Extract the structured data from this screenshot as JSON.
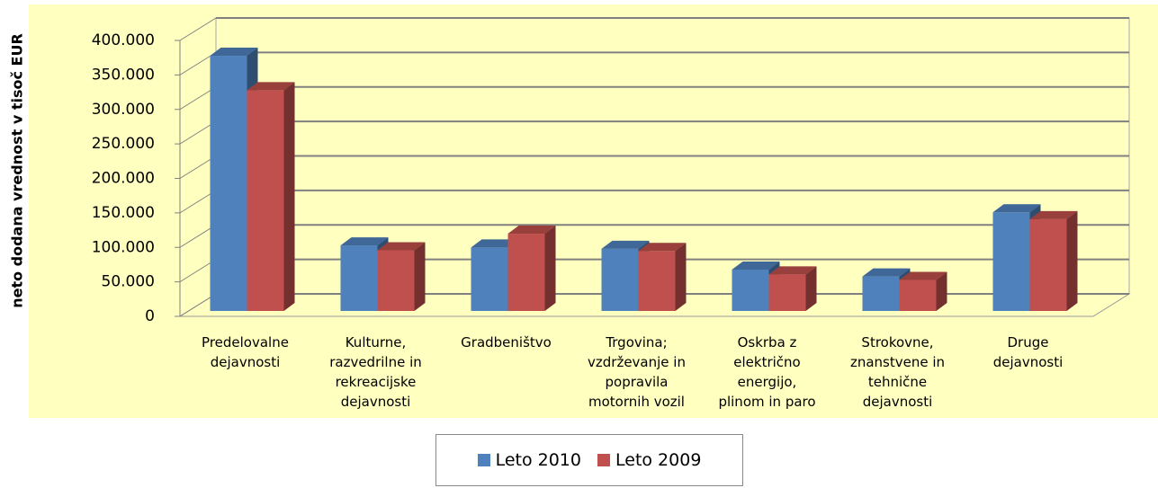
{
  "chart_data": {
    "type": "bar3d",
    "y_label": "neto dodana vrednost v tisoč EUR",
    "categories": [
      "Predelovalne\ndejavnosti",
      "Kulturne,\nrazvedrilne in\nrekreacijske\ndejavnosti",
      "Gradbeništvo",
      "Trgovina;\nvzdrževanje in\npopravila\nmotornih vozil",
      "Oskrba z\nelektrično\nenergijo,\nplinom in paro",
      "Strokovne,\nznanstvene in\ntehnične\ndejavnosti",
      "Druge\ndejavnosti"
    ],
    "series": [
      {
        "name": "Leto 2010",
        "color": "#4f81bd",
        "values": [
          370000,
          95000,
          92000,
          90000,
          60000,
          50000,
          143000
        ]
      },
      {
        "name": "Leto 2009",
        "color": "#c0504d",
        "values": [
          320000,
          88000,
          112000,
          87000,
          53000,
          45000,
          133000
        ]
      }
    ],
    "ylim": [
      0,
      400000
    ],
    "yticks": [
      0,
      {
        "value": 50000,
        "label": "50.000"
      },
      {
        "value": 100000,
        "label": "100.000"
      },
      {
        "value": 150000,
        "label": "150.000"
      },
      {
        "value": 200000,
        "label": "200.000"
      },
      {
        "value": 250000,
        "label": "250.000"
      },
      {
        "value": 300000,
        "label": "300.000"
      },
      {
        "value": 350000,
        "label": "350.000"
      },
      {
        "value": 400000,
        "label": "400.000"
      }
    ],
    "grid": true,
    "legend": "bottom"
  }
}
